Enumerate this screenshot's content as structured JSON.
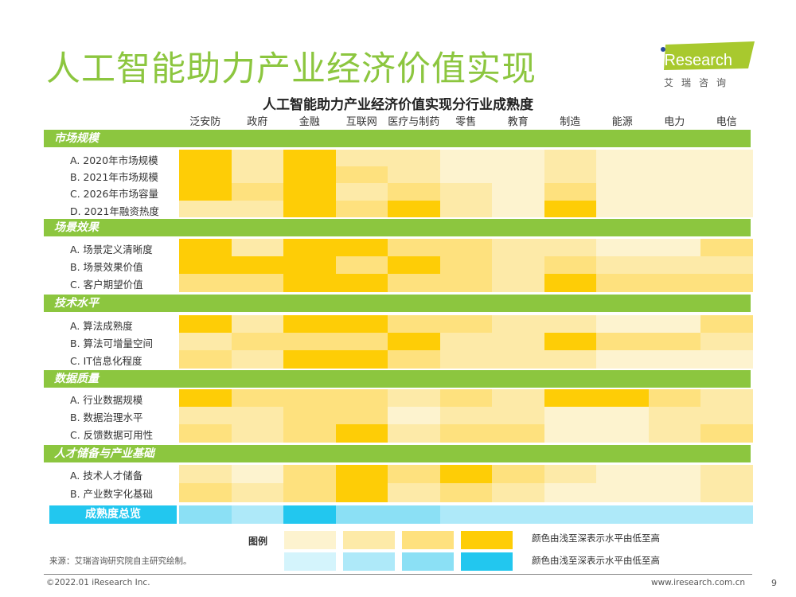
{
  "title": "人工智能助力产业经济价值实现",
  "logo": {
    "brand": "iResearch",
    "cn": "艾 瑞 咨 询",
    "color": "#a8c92e"
  },
  "chart_data": {
    "type": "heatmap",
    "title": "人工智能助力产业经济价值实现分行业成熟度",
    "columns": [
      "泛安防",
      "政府",
      "金融",
      "互联网",
      "医疗与制药",
      "零售",
      "教育",
      "制造",
      "能源",
      "电力",
      "电信"
    ],
    "scale": "1-4 (颜色由浅至深表示水平由低至高)",
    "sections": [
      {
        "name": "市场规模",
        "rows": [
          {
            "label": "A. 2020年市场规模",
            "values": [
              4,
              2,
              4,
              2,
              2,
              1,
              1,
              2,
              1,
              1,
              1
            ]
          },
          {
            "label": "B. 2021年市场规模",
            "values": [
              4,
              2,
              4,
              3,
              2,
              1,
              1,
              2,
              1,
              1,
              1
            ]
          },
          {
            "label": "C. 2026年市场容量",
            "values": [
              4,
              3,
              4,
              2,
              3,
              2,
              1,
              3,
              1,
              1,
              1
            ]
          },
          {
            "label": "D. 2021年融资热度",
            "values": [
              2,
              2,
              4,
              3,
              4,
              2,
              1,
              4,
              1,
              1,
              1
            ]
          }
        ]
      },
      {
        "name": "场景效果",
        "rows": [
          {
            "label": "A. 场景定义清晰度",
            "values": [
              4,
              2,
              4,
              4,
              3,
              3,
              2,
              2,
              1,
              1,
              3
            ]
          },
          {
            "label": "B. 场景效果价值",
            "values": [
              4,
              4,
              4,
              3,
              4,
              3,
              2,
              3,
              2,
              2,
              2
            ]
          },
          {
            "label": "C. 客户期望价值",
            "values": [
              3,
              3,
              4,
              4,
              3,
              3,
              2,
              4,
              3,
              3,
              3
            ]
          }
        ]
      },
      {
        "name": "技术水平",
        "rows": [
          {
            "label": "A. 算法成熟度",
            "values": [
              4,
              2,
              4,
              4,
              3,
              3,
              2,
              2,
              1,
              1,
              3
            ]
          },
          {
            "label": "B. 算法可增量空间",
            "values": [
              2,
              3,
              3,
              3,
              4,
              2,
              2,
              4,
              3,
              3,
              2
            ]
          },
          {
            "label": "C. IT信息化程度",
            "values": [
              3,
              2,
              4,
              4,
              3,
              2,
              2,
              2,
              1,
              1,
              1
            ]
          }
        ]
      },
      {
        "name": "数据质量",
        "rows": [
          {
            "label": "A. 行业数据规模",
            "values": [
              4,
              3,
              3,
              3,
              2,
              3,
              2,
              4,
              4,
              3,
              2
            ]
          },
          {
            "label": "B. 数据治理水平",
            "values": [
              2,
              2,
              3,
              3,
              1,
              2,
              2,
              1,
              1,
              2,
              2
            ]
          },
          {
            "label": "C. 反馈数据可用性",
            "values": [
              3,
              2,
              3,
              4,
              2,
              3,
              3,
              1,
              1,
              2,
              3
            ]
          }
        ]
      },
      {
        "name": "人才储备与产业基础",
        "rows": [
          {
            "label": "A. 技术人才储备",
            "values": [
              2,
              1,
              3,
              4,
              3,
              4,
              3,
              2,
              1,
              1,
              2
            ]
          },
          {
            "label": "B. 产业数字化基础",
            "values": [
              3,
              2,
              3,
              4,
              2,
              3,
              2,
              1,
              1,
              1,
              2
            ]
          }
        ]
      }
    ],
    "overview": {
      "label": "成熟度总览",
      "values": [
        3,
        2,
        4,
        3,
        3,
        2,
        2,
        2,
        2,
        2,
        2
      ]
    },
    "yellow_scale": [
      "#fdf3cf",
      "#fdeaa8",
      "#fee17e",
      "#fecd06"
    ],
    "blue_scale": [
      "#d4f4fc",
      "#aee9f9",
      "#8be0f5",
      "#22c7ef"
    ],
    "section_color": "#8cc63f"
  },
  "legend": {
    "title": "图例",
    "text_yellow": "颜色由浅至深表示水平由低至高",
    "text_blue": "颜色由浅至深表示水平由低至高"
  },
  "source": "来源：艾瑞咨询研究院自主研究绘制。",
  "footer": {
    "copyright": "©2022.01 iResearch Inc.",
    "website": "www.iresearch.com.cn",
    "page": "9"
  }
}
